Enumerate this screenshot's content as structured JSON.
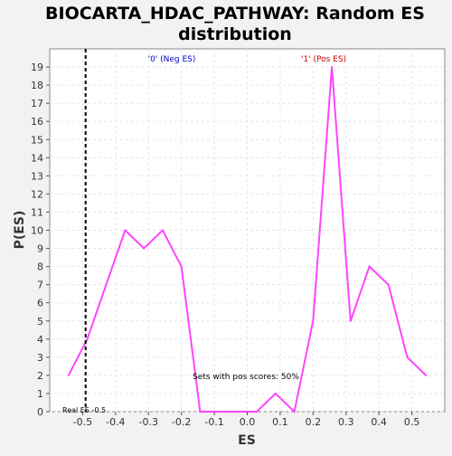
{
  "chart_data": {
    "type": "line",
    "title": "BIOCARTA_HDAC_PATHWAY: Random ES distribution",
    "title_lines": [
      "BIOCARTA_HDAC_PATHWAY: Random ES",
      "distribution"
    ],
    "xlabel": "ES",
    "ylabel": "P(ES)",
    "xlim": [
      -0.6,
      0.6
    ],
    "ylim": [
      0,
      20
    ],
    "x_ticks": [
      -0.5,
      -0.4,
      -0.3,
      -0.2,
      -0.1,
      0.0,
      0.1,
      0.2,
      0.3,
      0.4,
      0.5
    ],
    "x_tick_labels": [
      "-0.5",
      "-0.4",
      "-0.3",
      "-0.2",
      "-0.1",
      "0.0",
      "0.1",
      "0.2",
      "0.3",
      "0.4",
      "0.5"
    ],
    "y_ticks": [
      0,
      1,
      2,
      3,
      4,
      5,
      6,
      7,
      8,
      9,
      10,
      11,
      12,
      13,
      14,
      15,
      16,
      17,
      18,
      19
    ],
    "y_tick_labels": [
      "0",
      "1",
      "2",
      "3",
      "4",
      "5",
      "6",
      "7",
      "8",
      "9",
      "10",
      "11",
      "12",
      "13",
      "14",
      "15",
      "16",
      "17",
      "18",
      "19"
    ],
    "grid": true,
    "series": [
      {
        "color": "#ff44ff",
        "x": [
          -0.543,
          -0.486,
          -0.371,
          -0.314,
          -0.257,
          -0.2,
          -0.143,
          -0.086,
          -0.029,
          0.029,
          0.086,
          0.143,
          0.2,
          0.257,
          0.314,
          0.371,
          0.429,
          0.486,
          0.543
        ],
        "y": [
          2,
          4,
          10,
          9,
          10,
          8,
          0,
          0,
          0,
          0,
          1,
          0,
          5,
          19,
          5,
          8,
          7,
          3,
          2
        ]
      }
    ],
    "annotations": {
      "neg_label": "'0' (Neg ES)",
      "neg_color": "#0000cc",
      "pos_label": "'1' (Pos ES)",
      "pos_color": "#cc0000",
      "pos_scores_text": "Sets with pos scores: 50%",
      "real_es_label": "Real ES -0.5",
      "real_es_value": -0.491
    }
  }
}
